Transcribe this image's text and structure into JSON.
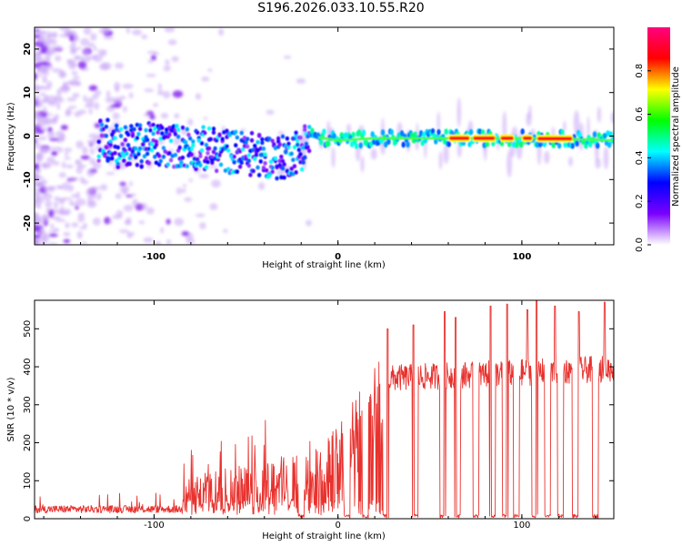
{
  "title": "S196.2026.033.10.55.R20",
  "chart_data": [
    {
      "type": "heatmap",
      "xlabel": "Height of straight line (km)",
      "ylabel": "Frequency (Hz)",
      "xlim": [
        -165,
        150
      ],
      "ylim": [
        -25,
        25
      ],
      "xticks": [
        -100,
        0,
        100
      ],
      "xtick_labels": [
        "-100",
        "0",
        "100"
      ],
      "yticks": [
        20,
        10,
        0,
        -10,
        -20
      ],
      "ytick_labels": [
        "20",
        "10",
        "0",
        "-10",
        "-20"
      ],
      "colorbar": {
        "label": "Normalized spectral amplitude",
        "range": [
          0,
          1
        ],
        "ticks": [
          0,
          0.2,
          0.4,
          0.6,
          0.8
        ],
        "tick_labels": [
          "0.0",
          "0.2",
          "0.4",
          "0.6",
          "0.8"
        ],
        "colors": [
          "#ffffff",
          "#7a00ff",
          "#0000ff",
          "#00ffff",
          "#00ff00",
          "#ffff00",
          "#ff0000",
          "#ff0080"
        ]
      },
      "ridge_centre_hz": [
        {
          "x": -120,
          "f": -2.5
        },
        {
          "x": -100,
          "f": -2.0
        },
        {
          "x": -80,
          "f": -2.5
        },
        {
          "x": -50,
          "f": -4.0
        },
        {
          "x": -30,
          "f": -5.0
        },
        {
          "x": -20,
          "f": -3.0
        },
        {
          "x": -15,
          "f": 0
        },
        {
          "x": 0,
          "f": -1.0
        },
        {
          "x": 20,
          "f": -0.5
        },
        {
          "x": 50,
          "f": -0.5
        },
        {
          "x": 80,
          "f": -0.5
        },
        {
          "x": 110,
          "f": -0.5
        },
        {
          "x": 150,
          "f": -1.0
        }
      ],
      "strong_ridge_segments_km": [
        [
          60,
          72
        ],
        [
          73,
          86
        ],
        [
          88,
          96
        ],
        [
          100,
          106
        ],
        [
          108,
          128
        ]
      ]
    },
    {
      "type": "line",
      "xlabel": "Height of straight line (km)",
      "ylabel": "SNR (10 * v/v)",
      "xlim": [
        -165,
        150
      ],
      "ylim": [
        0,
        575
      ],
      "xticks": [
        -100,
        0,
        100
      ],
      "xtick_labels": [
        "-100",
        "0",
        "100"
      ],
      "yticks": [
        0,
        100,
        200,
        300,
        400,
        500
      ],
      "ytick_labels": [
        "0",
        "100",
        "200",
        "300",
        "400",
        "500"
      ],
      "series_color": "#e8322e",
      "baseline_snr": 15,
      "baseline_noise_amplitude": 20,
      "snr_envelope": [
        {
          "x": -165,
          "snr": 20
        },
        {
          "x": -100,
          "snr": 40
        },
        {
          "x": -85,
          "snr": 80
        },
        {
          "x": -60,
          "snr": 120
        },
        {
          "x": -30,
          "snr": 140
        },
        {
          "x": -10,
          "snr": 160
        },
        {
          "x": 0,
          "snr": 210
        },
        {
          "x": 10,
          "snr": 270
        },
        {
          "x": 20,
          "snr": 340
        },
        {
          "x": 30,
          "snr": 370
        },
        {
          "x": 100,
          "snr": 385
        },
        {
          "x": 150,
          "snr": 395
        }
      ],
      "dropouts_km": [
        -20,
        5,
        15,
        26,
        42,
        57,
        65,
        75,
        84,
        91,
        97,
        107,
        114,
        121,
        129,
        140
      ],
      "spikes": [
        {
          "x": 27,
          "snr": 500
        },
        {
          "x": 41,
          "snr": 510
        },
        {
          "x": 58,
          "snr": 545
        },
        {
          "x": 64,
          "snr": 530
        },
        {
          "x": 83,
          "snr": 560
        },
        {
          "x": 92,
          "snr": 565
        },
        {
          "x": 103,
          "snr": 550
        },
        {
          "x": 108,
          "snr": 575
        },
        {
          "x": 118,
          "snr": 560
        },
        {
          "x": 131,
          "snr": 545
        },
        {
          "x": 145,
          "snr": 570
        }
      ]
    }
  ]
}
